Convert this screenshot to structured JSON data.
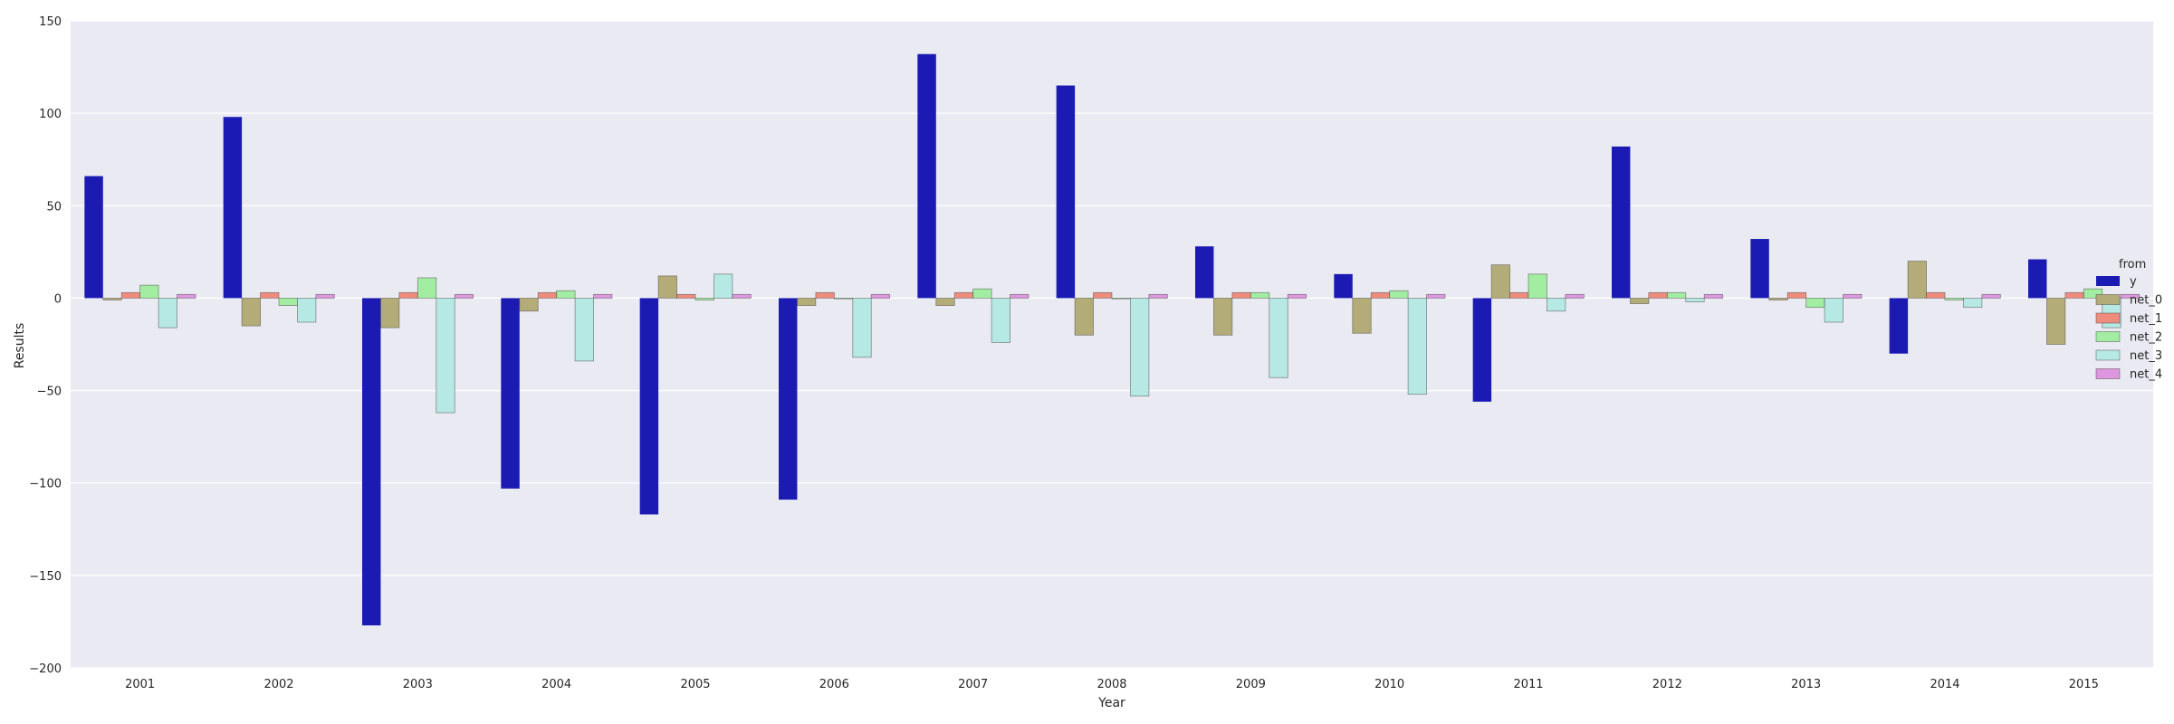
{
  "chart_data": {
    "type": "bar",
    "xlabel": "Year",
    "ylabel": "Results",
    "ylim": [
      -200,
      150
    ],
    "yticks": [
      -200,
      -150,
      -100,
      -50,
      0,
      50,
      100,
      150
    ],
    "ytick_labels": [
      "−200",
      "−150",
      "−100",
      "−50",
      "0",
      "50",
      "100",
      "150"
    ],
    "grid": true,
    "background": "#EAEAF2",
    "legend": {
      "title": "from",
      "placement": "right"
    },
    "categories": [
      "2001",
      "2002",
      "2003",
      "2004",
      "2005",
      "2006",
      "2007",
      "2008",
      "2009",
      "2010",
      "2011",
      "2012",
      "2013",
      "2014",
      "2015"
    ],
    "series": [
      {
        "name": "y",
        "color": "#1b1bb4",
        "values": [
          66,
          98,
          -177,
          -103,
          -117,
          -109,
          132,
          115,
          28,
          13,
          -56,
          82,
          32,
          -30,
          21
        ]
      },
      {
        "name": "net_0",
        "color": "#b4ac78",
        "values": [
          -1,
          -15,
          -16,
          -7,
          12,
          -4,
          -4,
          -20,
          -20,
          -19,
          18,
          -3,
          -1,
          20,
          -25
        ]
      },
      {
        "name": "net_1",
        "color": "#ee8c7e",
        "values": [
          3,
          3,
          3,
          3,
          2,
          3,
          3,
          3,
          3,
          3,
          3,
          3,
          3,
          3,
          3
        ]
      },
      {
        "name": "net_2",
        "color": "#a2eda2",
        "values": [
          7,
          -4,
          11,
          4,
          -1,
          0,
          5,
          0,
          3,
          4,
          13,
          3,
          -5,
          -1,
          5
        ]
      },
      {
        "name": "net_3",
        "color": "#b6e8e4",
        "values": [
          -16,
          -13,
          -62,
          -34,
          13,
          -32,
          -24,
          -53,
          -43,
          -52,
          -7,
          -2,
          -13,
          -5,
          -16
        ]
      },
      {
        "name": "net_4",
        "color": "#de96de",
        "values": [
          2,
          2,
          2,
          2,
          2,
          2,
          2,
          2,
          2,
          2,
          2,
          2,
          2,
          2,
          2
        ]
      }
    ]
  }
}
